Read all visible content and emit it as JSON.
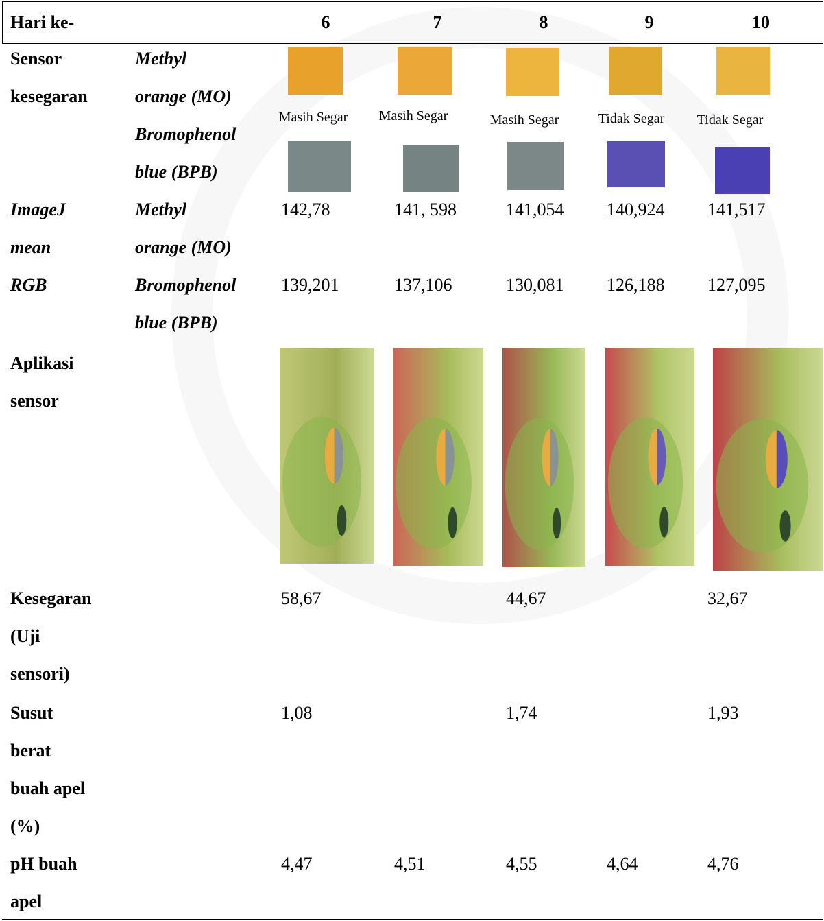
{
  "table": {
    "header": {
      "label": "Hari ke-",
      "days": [
        "6",
        "7",
        "8",
        "9",
        "10"
      ]
    },
    "sensor": {
      "label": [
        "Sensor",
        "kesegaran"
      ],
      "mo": [
        "Methyl",
        "orange (MO)"
      ],
      "bpb": [
        "Bromophenol",
        "blue (BPB)"
      ],
      "status": [
        "Masih Segar",
        "Masih Segar",
        "Masih Segar",
        "Tidak Segar",
        "Tidak Segar"
      ]
    },
    "imagej": {
      "label": [
        "ImageJ",
        "mean",
        "RGB"
      ],
      "mo": [
        "Methyl",
        "orange (MO)"
      ],
      "bpb": [
        "Bromophenol",
        "blue (BPB)"
      ],
      "mo_values": [
        "142,78",
        "141, 598",
        "141,054",
        "140,924",
        "141,517"
      ],
      "bpb_values": [
        "139,201",
        "137,106",
        "130,081",
        "126,188",
        "127,095"
      ]
    },
    "aplikasi": {
      "label": [
        "Aplikasi",
        "sensor"
      ]
    },
    "kesegaran": {
      "label": [
        "Kesegaran",
        "(Uji",
        "sensori)"
      ],
      "values": [
        "58,67",
        null,
        "44,67",
        null,
        "32,67"
      ]
    },
    "susut": {
      "label": [
        "Susut",
        "berat",
        "buah apel",
        "(%)"
      ],
      "values": [
        "1,08",
        null,
        "1,74",
        null,
        "1,93"
      ]
    },
    "ph": {
      "label": [
        "pH buah",
        "apel"
      ],
      "values": [
        "4,47",
        "4,51",
        "4,55",
        "4,64",
        "4,76"
      ]
    }
  }
}
